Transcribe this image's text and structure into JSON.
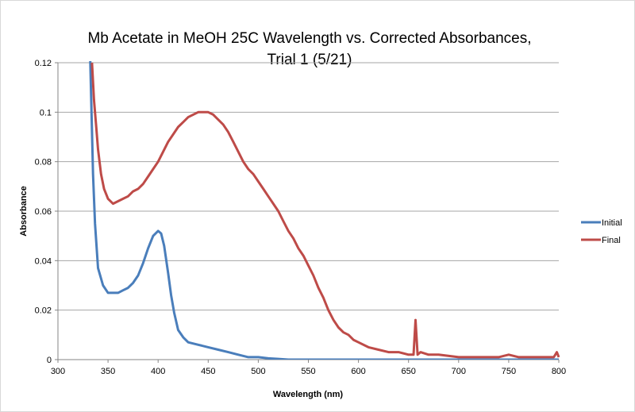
{
  "chart_data": {
    "type": "line",
    "title_lines": [
      "Mb Acetate in MeOH 25C Wavelength vs. Corrected Absorbances,",
      "Trial 1 (5/21)"
    ],
    "xlabel": "Wavelength (nm)",
    "ylabel": "Absorbance",
    "xlim": [
      300,
      800
    ],
    "ylim": [
      0,
      0.12
    ],
    "xticks": [
      "300",
      "350",
      "400",
      "450",
      "500",
      "550",
      "600",
      "650",
      "700",
      "750",
      "800"
    ],
    "yticks": [
      "0",
      "0.02",
      "0.04",
      "0.06",
      "0.08",
      "0.1",
      "0.12"
    ],
    "grid": "horizontal",
    "legend": "right",
    "series": [
      {
        "name": "Initial",
        "color": "#4a7ebb",
        "x": [
          332,
          335,
          337,
          340,
          345,
          350,
          355,
          360,
          365,
          370,
          375,
          380,
          385,
          390,
          395,
          400,
          403,
          406,
          410,
          413,
          416,
          420,
          425,
          430,
          440,
          450,
          460,
          470,
          480,
          490,
          500,
          510,
          520,
          530,
          540,
          800
        ],
        "y": [
          0.125,
          0.075,
          0.055,
          0.037,
          0.03,
          0.027,
          0.027,
          0.027,
          0.028,
          0.029,
          0.031,
          0.034,
          0.039,
          0.045,
          0.05,
          0.052,
          0.051,
          0.046,
          0.035,
          0.026,
          0.019,
          0.012,
          0.009,
          0.007,
          0.006,
          0.005,
          0.004,
          0.003,
          0.002,
          0.001,
          0.001,
          0.0005,
          0.0003,
          0,
          0,
          0
        ]
      },
      {
        "name": "Final",
        "color": "#be4b48",
        "x": [
          334,
          336,
          338,
          340,
          343,
          346,
          350,
          355,
          360,
          365,
          370,
          375,
          380,
          385,
          390,
          395,
          400,
          405,
          410,
          415,
          420,
          425,
          430,
          435,
          440,
          445,
          450,
          455,
          460,
          465,
          470,
          475,
          480,
          485,
          490,
          495,
          500,
          505,
          510,
          515,
          520,
          525,
          530,
          535,
          540,
          545,
          550,
          555,
          560,
          565,
          570,
          575,
          580,
          585,
          590,
          595,
          600,
          610,
          620,
          630,
          640,
          650,
          655,
          657,
          659,
          662,
          670,
          680,
          700,
          720,
          740,
          750,
          760,
          780,
          795,
          798,
          800
        ],
        "y": [
          0.12,
          0.105,
          0.095,
          0.085,
          0.075,
          0.069,
          0.065,
          0.063,
          0.064,
          0.065,
          0.066,
          0.068,
          0.069,
          0.071,
          0.074,
          0.077,
          0.08,
          0.084,
          0.088,
          0.091,
          0.094,
          0.096,
          0.098,
          0.099,
          0.1,
          0.1,
          0.1,
          0.099,
          0.097,
          0.095,
          0.092,
          0.088,
          0.084,
          0.08,
          0.077,
          0.075,
          0.072,
          0.069,
          0.066,
          0.063,
          0.06,
          0.056,
          0.052,
          0.049,
          0.045,
          0.042,
          0.038,
          0.034,
          0.029,
          0.025,
          0.02,
          0.016,
          0.013,
          0.011,
          0.01,
          0.008,
          0.007,
          0.005,
          0.004,
          0.003,
          0.003,
          0.002,
          0.002,
          0.016,
          0.002,
          0.003,
          0.002,
          0.002,
          0.001,
          0.001,
          0.001,
          0.002,
          0.001,
          0.001,
          0.001,
          0.003,
          0.001
        ]
      }
    ]
  }
}
